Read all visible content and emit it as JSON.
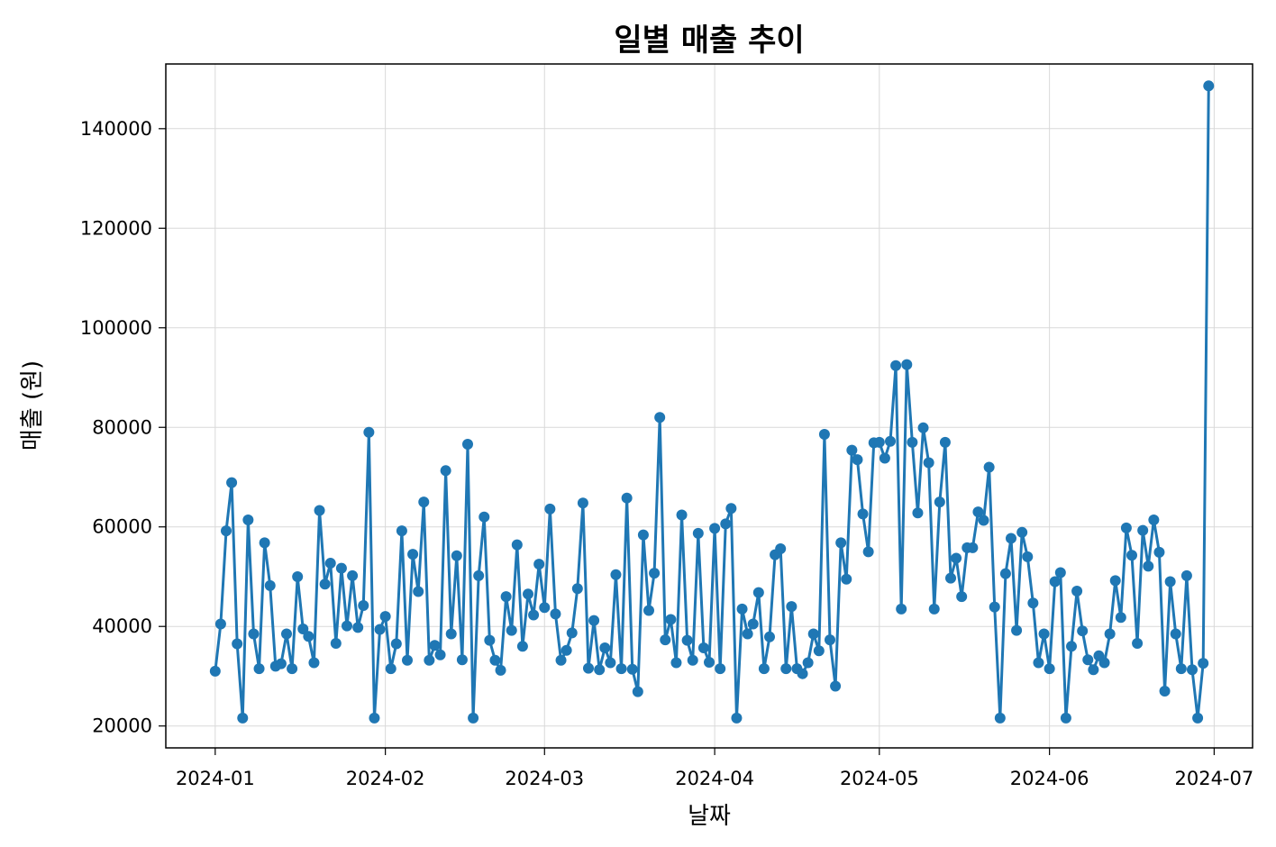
{
  "chart_data": {
    "type": "line",
    "title": "일별 매출 추이",
    "xlabel": "날짜",
    "ylabel": "매출 (원)",
    "grid": true,
    "marker": "circle",
    "color": "#1f77b4",
    "x_start": "2024-01-01",
    "x_ticks": [
      "2024-01",
      "2024-02",
      "2024-03",
      "2024-04",
      "2024-05",
      "2024-06",
      "2024-07"
    ],
    "x_tick_days": [
      0,
      31,
      60,
      91,
      121,
      152,
      182
    ],
    "xlim_days": [
      -9,
      189
    ],
    "y_ticks": [
      20000,
      40000,
      60000,
      80000,
      100000,
      120000,
      140000
    ],
    "ylim": [
      15600,
      153000
    ],
    "series": [
      {
        "name": "매출",
        "values": [
          31000,
          40500,
          59200,
          68900,
          36500,
          21600,
          61400,
          38500,
          31500,
          56800,
          48200,
          32000,
          32500,
          38500,
          31500,
          50000,
          39500,
          38000,
          32700,
          63300,
          48500,
          52700,
          36600,
          51700,
          40100,
          50200,
          39800,
          44200,
          79000,
          21600,
          39400,
          42000,
          31500,
          36500,
          59200,
          33200,
          54500,
          47000,
          65000,
          33200,
          36200,
          34300,
          71300,
          38500,
          54200,
          33300,
          76600,
          21600,
          50200,
          62000,
          37200,
          33200,
          31200,
          46000,
          39200,
          56400,
          36000,
          46500,
          42300,
          52500,
          43800,
          63600,
          42500,
          33200,
          35200,
          38700,
          47600,
          64800,
          31600,
          41200,
          31300,
          35700,
          32700,
          50400,
          31500,
          65800,
          31400,
          26900,
          58400,
          43200,
          50700,
          82000,
          37300,
          41400,
          32700,
          62400,
          37200,
          33200,
          58700,
          35700,
          32800,
          59700,
          31500,
          60600,
          63700,
          21600,
          43500,
          38500,
          40500,
          46800,
          31500,
          37900,
          54400,
          55600,
          31500,
          44000,
          31500,
          30500,
          32700,
          38500,
          35100,
          78600,
          37300,
          28000,
          56800,
          49500,
          75400,
          73500,
          62600,
          55000,
          76900,
          77000,
          73800,
          77200,
          92400,
          43500,
          92600,
          77000,
          62800,
          79900,
          72900,
          43500,
          65000,
          77000,
          49700,
          53700,
          46000,
          55800,
          55800,
          63000,
          61300,
          72000,
          43900,
          21600,
          50600,
          57700,
          39200,
          58900,
          54000,
          44700,
          32700,
          38500,
          31500,
          49000,
          50800,
          21600,
          36000,
          47100,
          39100,
          33300,
          31300,
          34100,
          32700,
          38500,
          49200,
          41800,
          59800,
          54300,
          36600,
          59300,
          52100,
          61400,
          54900,
          27000,
          49000,
          38500,
          31500,
          50200,
          31300,
          21600,
          32600,
          148600
        ]
      }
    ]
  }
}
